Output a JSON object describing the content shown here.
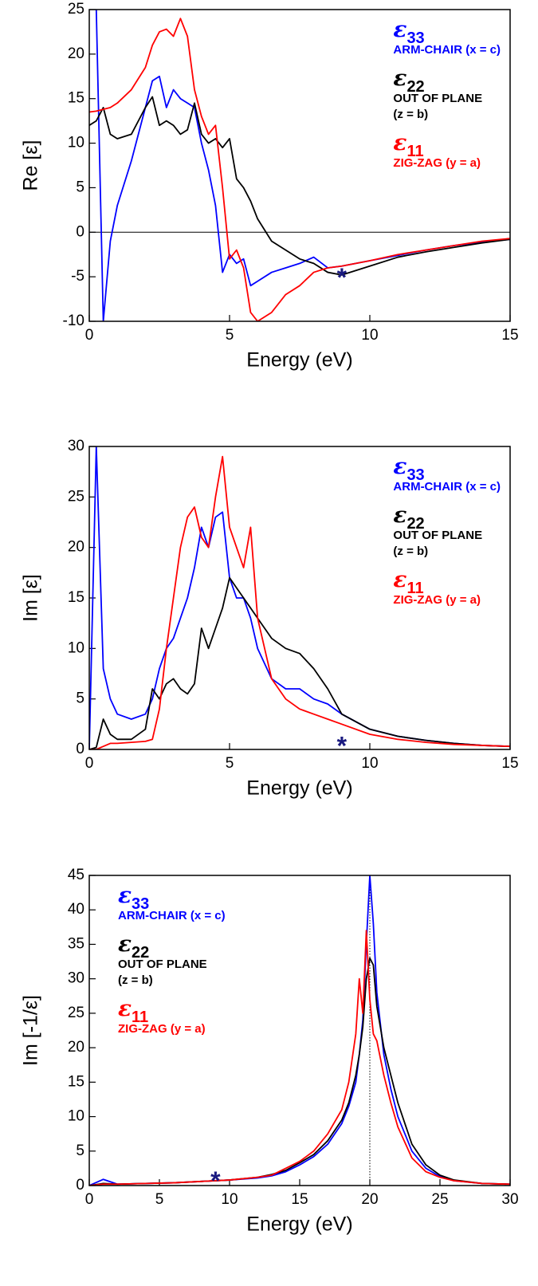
{
  "chart_data": [
    {
      "type": "line",
      "xlabel": "Energy (eV)",
      "ylabel": "Re [ε]",
      "xlim": [
        0,
        15
      ],
      "xticks": [
        0,
        5,
        10,
        15
      ],
      "ylim": [
        -10,
        25
      ],
      "yticks": [
        -10,
        -5,
        0,
        5,
        10,
        15,
        20,
        25
      ],
      "hline": 0,
      "legend": "upper right",
      "annotation": {
        "text": "*",
        "x": 9,
        "y": -4.6,
        "color": "#1a1a80"
      },
      "x": [
        0,
        0.25,
        0.5,
        0.75,
        1,
        1.5,
        2,
        2.25,
        2.5,
        2.75,
        3,
        3.25,
        3.5,
        3.75,
        4,
        4.25,
        4.5,
        4.75,
        5,
        5.25,
        5.5,
        5.75,
        6,
        6.5,
        7,
        7.5,
        8,
        8.5,
        9,
        10,
        11,
        12,
        13,
        14,
        15
      ],
      "series": [
        {
          "name": "ARM-CHAIR (x = c)",
          "symbol": "ε",
          "subscript": "33",
          "color": "#0000ff",
          "values": [
            null,
            25,
            -10,
            -1,
            3,
            8,
            14,
            17,
            17.5,
            14,
            16,
            15,
            14.5,
            14,
            10,
            7,
            3,
            -4.5,
            -2.5,
            -3.5,
            -3,
            -6,
            -5.5,
            -4.5,
            -4,
            -3.5,
            -2.8,
            -4,
            -3.8,
            -3.2,
            -2.6,
            -2,
            -1.5,
            -1.1,
            -0.8
          ]
        },
        {
          "name": "OUT OF PLANE\n(z = b)",
          "symbol": "ε",
          "subscript": "22",
          "color": "#000000",
          "values": [
            12,
            12.5,
            14,
            11,
            10.5,
            11,
            14,
            15.2,
            12,
            12.5,
            12,
            11,
            11.5,
            14.5,
            11,
            10,
            10.5,
            9.5,
            10.5,
            6,
            5,
            3.5,
            1.5,
            -1,
            -2,
            -3,
            -3.5,
            -4.5,
            -4.8,
            -3.8,
            -2.8,
            -2.2,
            -1.7,
            -1.2,
            -0.8
          ]
        },
        {
          "name": "ZIG-ZAG (y = a)",
          "symbol": "ε",
          "subscript": "11",
          "color": "#ff0000",
          "values": [
            13.5,
            13.6,
            13.8,
            14,
            14.5,
            16,
            18.5,
            21,
            22.5,
            22.8,
            22,
            24,
            22,
            16,
            13,
            11,
            12,
            5,
            -3,
            -2,
            -4,
            -9,
            -10,
            -9,
            -7,
            -6,
            -4.5,
            -4,
            -3.8,
            -3.2,
            -2.5,
            -2,
            -1.5,
            -1,
            -0.7
          ]
        }
      ]
    },
    {
      "type": "line",
      "xlabel": "Energy (eV)",
      "ylabel": "Im [ε]",
      "xlim": [
        0,
        15
      ],
      "xticks": [
        0,
        5,
        10,
        15
      ],
      "ylim": [
        0,
        30
      ],
      "yticks": [
        0,
        5,
        10,
        15,
        20,
        25,
        30
      ],
      "legend": "upper right",
      "annotation": {
        "text": "*",
        "x": 9,
        "y": 0.8,
        "color": "#1a1a80"
      },
      "x": [
        0,
        0.25,
        0.5,
        0.75,
        1,
        1.5,
        2,
        2.25,
        2.5,
        2.75,
        3,
        3.25,
        3.5,
        3.75,
        4,
        4.25,
        4.5,
        4.75,
        5,
        5.25,
        5.5,
        5.75,
        6,
        6.5,
        7,
        7.5,
        8,
        8.5,
        9,
        10,
        11,
        12,
        13,
        14,
        15
      ],
      "series": [
        {
          "name": "ARM-CHAIR (x = c)",
          "symbol": "ε",
          "subscript": "33",
          "color": "#0000ff",
          "values": [
            0,
            30,
            8,
            5,
            3.5,
            3,
            3.5,
            5,
            8,
            10,
            11,
            13,
            15,
            18,
            22,
            20,
            23,
            23.5,
            17,
            15,
            15,
            13,
            10,
            7,
            6,
            6,
            5,
            4.5,
            3.5,
            2,
            1.3,
            0.9,
            0.6,
            0.4,
            0.3
          ]
        },
        {
          "name": "OUT OF PLANE\n(z = b)",
          "symbol": "ε",
          "subscript": "22",
          "color": "#000000",
          "values": [
            0,
            0.2,
            3,
            1.5,
            1,
            1,
            2,
            6,
            5,
            6.5,
            7,
            6,
            5.5,
            6.5,
            12,
            10,
            12,
            14,
            17,
            16,
            15,
            14,
            13,
            11,
            10,
            9.5,
            8,
            6,
            3.5,
            2,
            1.3,
            0.9,
            0.6,
            0.4,
            0.3
          ]
        },
        {
          "name": "ZIG-ZAG (y = a)",
          "symbol": "ε",
          "subscript": "11",
          "color": "#ff0000",
          "values": [
            0,
            0,
            0.3,
            0.6,
            0.6,
            0.7,
            0.8,
            1,
            4,
            10,
            15,
            20,
            23,
            24,
            21,
            20,
            25,
            29,
            22,
            20,
            18,
            22,
            13,
            7,
            5,
            4,
            3.5,
            3,
            2.5,
            1.5,
            1,
            0.7,
            0.5,
            0.4,
            0.3
          ]
        }
      ]
    },
    {
      "type": "line",
      "xlabel": "Energy (eV)",
      "ylabel": "Im [-1/ε]",
      "xlim": [
        0,
        30
      ],
      "xticks": [
        0,
        5,
        10,
        15,
        20,
        25,
        30
      ],
      "ylim": [
        0,
        45
      ],
      "yticks": [
        0,
        5,
        10,
        15,
        20,
        25,
        30,
        35,
        40,
        45
      ],
      "vline": 20,
      "legend": "upper left",
      "annotation": {
        "text": "*",
        "x": 9,
        "y": 1.3,
        "color": "#1a1a80"
      },
      "x": [
        0,
        1,
        2,
        4,
        6,
        8,
        10,
        12,
        13,
        14,
        15,
        16,
        17,
        18,
        18.5,
        19,
        19.25,
        19.5,
        19.75,
        20,
        20.25,
        20.5,
        21,
        21.5,
        22,
        23,
        24,
        25,
        26,
        28,
        30
      ],
      "series": [
        {
          "name": "ARM-CHAIR (x = c)",
          "symbol": "ε",
          "subscript": "33",
          "color": "#0000ff",
          "values": [
            0,
            0.9,
            0.2,
            0.3,
            0.4,
            0.6,
            0.8,
            1.1,
            1.4,
            2,
            3,
            4.2,
            6,
            9,
            11.5,
            15,
            19,
            24,
            35,
            45,
            38,
            28,
            19,
            14,
            10,
            5,
            2.5,
            1.3,
            0.7,
            0.3,
            0.2
          ]
        },
        {
          "name": "OUT OF PLANE\n(z = b)",
          "symbol": "ε",
          "subscript": "22",
          "color": "#000000",
          "values": [
            0,
            0.3,
            0.2,
            0.3,
            0.4,
            0.6,
            0.8,
            1.2,
            1.6,
            2.2,
            3.3,
            4.5,
            6.5,
            9.5,
            12,
            16,
            19,
            23,
            30,
            33,
            32,
            26,
            20,
            16,
            12,
            6,
            3,
            1.5,
            0.8,
            0.3,
            0.2
          ]
        },
        {
          "name": "ZIG-ZAG (y = a)",
          "symbol": "ε",
          "subscript": "11",
          "color": "#ff0000",
          "values": [
            0,
            0.2,
            0.2,
            0.3,
            0.4,
            0.6,
            0.8,
            1.2,
            1.5,
            2.5,
            3.5,
            5,
            7.5,
            11,
            15,
            22,
            30,
            25,
            37,
            27,
            22,
            21,
            16,
            12,
            8.5,
            4,
            2,
            1.2,
            0.7,
            0.3,
            0.2
          ]
        }
      ]
    }
  ]
}
